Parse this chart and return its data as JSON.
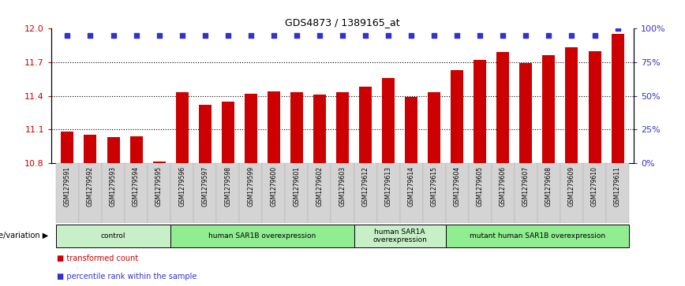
{
  "title": "GDS4873 / 1389165_at",
  "samples": [
    "GSM1279591",
    "GSM1279592",
    "GSM1279593",
    "GSM1279594",
    "GSM1279595",
    "GSM1279596",
    "GSM1279597",
    "GSM1279598",
    "GSM1279599",
    "GSM1279600",
    "GSM1279601",
    "GSM1279602",
    "GSM1279603",
    "GSM1279612",
    "GSM1279613",
    "GSM1279614",
    "GSM1279615",
    "GSM1279604",
    "GSM1279605",
    "GSM1279606",
    "GSM1279607",
    "GSM1279608",
    "GSM1279609",
    "GSM1279610",
    "GSM1279611"
  ],
  "bar_values": [
    11.08,
    11.05,
    11.03,
    11.04,
    10.81,
    11.43,
    11.32,
    11.35,
    11.42,
    11.44,
    11.43,
    11.41,
    11.43,
    11.48,
    11.56,
    11.39,
    11.43,
    11.63,
    11.72,
    11.79,
    11.69,
    11.76,
    11.83,
    11.8,
    11.95
  ],
  "percentile_values": [
    95,
    95,
    95,
    95,
    95,
    95,
    95,
    95,
    95,
    95,
    95,
    95,
    95,
    95,
    95,
    95,
    95,
    95,
    95,
    95,
    95,
    95,
    95,
    95,
    100
  ],
  "bar_color": "#cc0000",
  "dot_color": "#3333cc",
  "ylim_left": [
    10.8,
    12.0
  ],
  "ylim_right": [
    0,
    100
  ],
  "yticks_left": [
    10.8,
    11.1,
    11.4,
    11.7,
    12.0
  ],
  "yticks_right": [
    0,
    25,
    50,
    75,
    100
  ],
  "ytick_labels_right": [
    "0%",
    "25%",
    "50%",
    "75%",
    "100%"
  ],
  "groups": [
    {
      "label": "control",
      "start": 0,
      "end": 4,
      "color": "#c8f0c8"
    },
    {
      "label": "human SAR1B overexpression",
      "start": 5,
      "end": 12,
      "color": "#90ee90"
    },
    {
      "label": "human SAR1A\noverexpression",
      "start": 13,
      "end": 16,
      "color": "#c8f0c8"
    },
    {
      "label": "mutant human SAR1B overexpression",
      "start": 17,
      "end": 24,
      "color": "#90ee90"
    }
  ],
  "genotype_label": "genotype/variation",
  "legend_items": [
    {
      "color": "#cc0000",
      "label": "transformed count"
    },
    {
      "color": "#3333cc",
      "label": "percentile rank within the sample"
    }
  ],
  "tick_label_color": "#cc0000",
  "right_tick_color": "#3333cc",
  "background_color": "#ffffff"
}
